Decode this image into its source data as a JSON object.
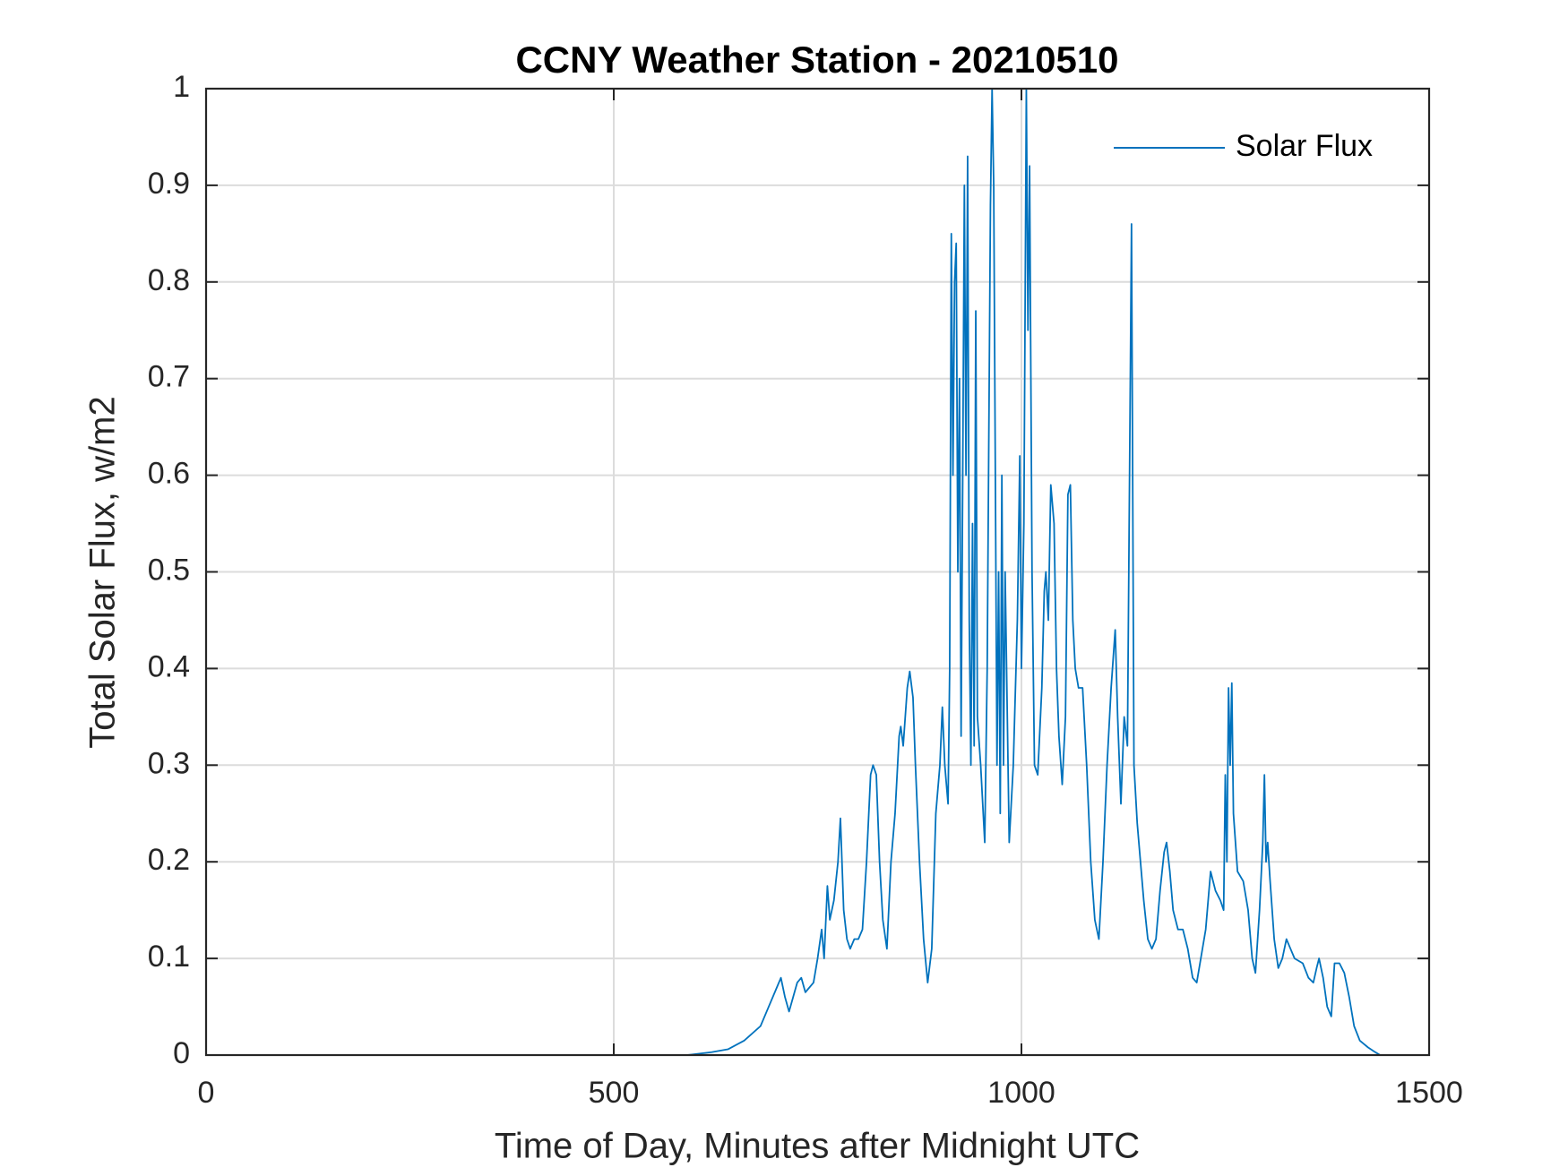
{
  "chart_data": {
    "type": "line",
    "title": "CCNY Weather Station - 20210510",
    "xlabel": "Time of Day, Minutes after Midnight UTC",
    "ylabel": "Total Solar Flux, w/m2",
    "xlim": [
      0,
      1500
    ],
    "ylim": [
      0,
      1
    ],
    "xticks": [
      0,
      500,
      1000,
      1500
    ],
    "yticks": [
      0,
      0.1,
      0.2,
      0.3,
      0.4,
      0.5,
      0.6,
      0.7,
      0.8,
      0.9,
      1
    ],
    "grid": true,
    "legend": "upper right",
    "x": [
      0,
      590,
      620,
      640,
      660,
      680,
      690,
      700,
      705,
      710,
      715,
      720,
      725,
      730,
      735,
      745,
      750,
      755,
      758,
      762,
      765,
      770,
      775,
      778,
      782,
      786,
      790,
      795,
      800,
      805,
      810,
      815,
      818,
      822,
      826,
      830,
      835,
      840,
      845,
      850,
      852,
      855,
      860,
      863,
      867,
      870,
      875,
      880,
      885,
      890,
      895,
      900,
      903,
      906,
      910,
      912,
      914,
      916,
      918,
      920,
      922,
      924,
      926,
      928,
      930,
      932,
      934,
      936,
      938,
      940,
      942,
      944,
      946,
      950,
      955,
      958,
      962,
      964,
      966,
      968,
      970,
      972,
      974,
      976,
      978,
      980,
      985,
      990,
      995,
      998,
      1000,
      1003,
      1006,
      1008,
      1010,
      1013,
      1016,
      1020,
      1025,
      1028,
      1030,
      1033,
      1036,
      1040,
      1043,
      1046,
      1050,
      1054,
      1057,
      1060,
      1063,
      1066,
      1070,
      1075,
      1080,
      1085,
      1090,
      1095,
      1100,
      1105,
      1110,
      1115,
      1118,
      1122,
      1126,
      1130,
      1135,
      1138,
      1142,
      1146,
      1150,
      1155,
      1160,
      1165,
      1170,
      1175,
      1178,
      1182,
      1186,
      1192,
      1198,
      1204,
      1210,
      1215,
      1220,
      1226,
      1232,
      1238,
      1244,
      1248,
      1250,
      1252,
      1254,
      1256,
      1258,
      1260,
      1265,
      1272,
      1278,
      1283,
      1287,
      1292,
      1296,
      1298,
      1300,
      1302,
      1305,
      1310,
      1315,
      1320,
      1325,
      1330,
      1335,
      1345,
      1352,
      1358,
      1362,
      1365,
      1370,
      1375,
      1380,
      1384,
      1390,
      1396,
      1402,
      1408,
      1415,
      1425,
      1432,
      1440
    ],
    "series": [
      {
        "name": "Solar Flux",
        "color": "#0072BD",
        "values": [
          0,
          0,
          0.003,
          0.006,
          0.015,
          0.03,
          0.05,
          0.07,
          0.08,
          0.06,
          0.045,
          0.06,
          0.075,
          0.08,
          0.065,
          0.075,
          0.1,
          0.13,
          0.1,
          0.175,
          0.14,
          0.16,
          0.2,
          0.245,
          0.15,
          0.12,
          0.11,
          0.12,
          0.12,
          0.13,
          0.2,
          0.29,
          0.3,
          0.29,
          0.2,
          0.14,
          0.11,
          0.2,
          0.25,
          0.33,
          0.34,
          0.32,
          0.38,
          0.397,
          0.37,
          0.3,
          0.2,
          0.12,
          0.075,
          0.11,
          0.25,
          0.3,
          0.36,
          0.3,
          0.26,
          0.4,
          0.85,
          0.6,
          0.8,
          0.84,
          0.5,
          0.7,
          0.33,
          0.6,
          0.9,
          0.6,
          0.93,
          0.45,
          0.3,
          0.55,
          0.32,
          0.77,
          0.35,
          0.3,
          0.22,
          0.4,
          0.88,
          1.0,
          0.9,
          0.6,
          0.3,
          0.5,
          0.25,
          0.6,
          0.3,
          0.5,
          0.22,
          0.3,
          0.45,
          0.62,
          0.4,
          0.55,
          1.0,
          0.75,
          0.92,
          0.5,
          0.3,
          0.29,
          0.38,
          0.48,
          0.5,
          0.45,
          0.59,
          0.55,
          0.4,
          0.33,
          0.28,
          0.35,
          0.58,
          0.59,
          0.45,
          0.4,
          0.38,
          0.38,
          0.3,
          0.2,
          0.14,
          0.12,
          0.2,
          0.3,
          0.38,
          0.44,
          0.35,
          0.26,
          0.35,
          0.32,
          0.86,
          0.3,
          0.24,
          0.2,
          0.16,
          0.12,
          0.11,
          0.12,
          0.17,
          0.21,
          0.22,
          0.19,
          0.15,
          0.13,
          0.13,
          0.11,
          0.08,
          0.075,
          0.1,
          0.13,
          0.19,
          0.17,
          0.16,
          0.15,
          0.29,
          0.2,
          0.38,
          0.3,
          0.385,
          0.25,
          0.19,
          0.18,
          0.15,
          0.1,
          0.085,
          0.15,
          0.22,
          0.29,
          0.2,
          0.22,
          0.18,
          0.12,
          0.09,
          0.1,
          0.12,
          0.11,
          0.1,
          0.095,
          0.08,
          0.075,
          0.09,
          0.1,
          0.08,
          0.05,
          0.04,
          0.095,
          0.095,
          0.085,
          0.06,
          0.03,
          0.015,
          0.008,
          0.004,
          0
        ]
      }
    ]
  }
}
